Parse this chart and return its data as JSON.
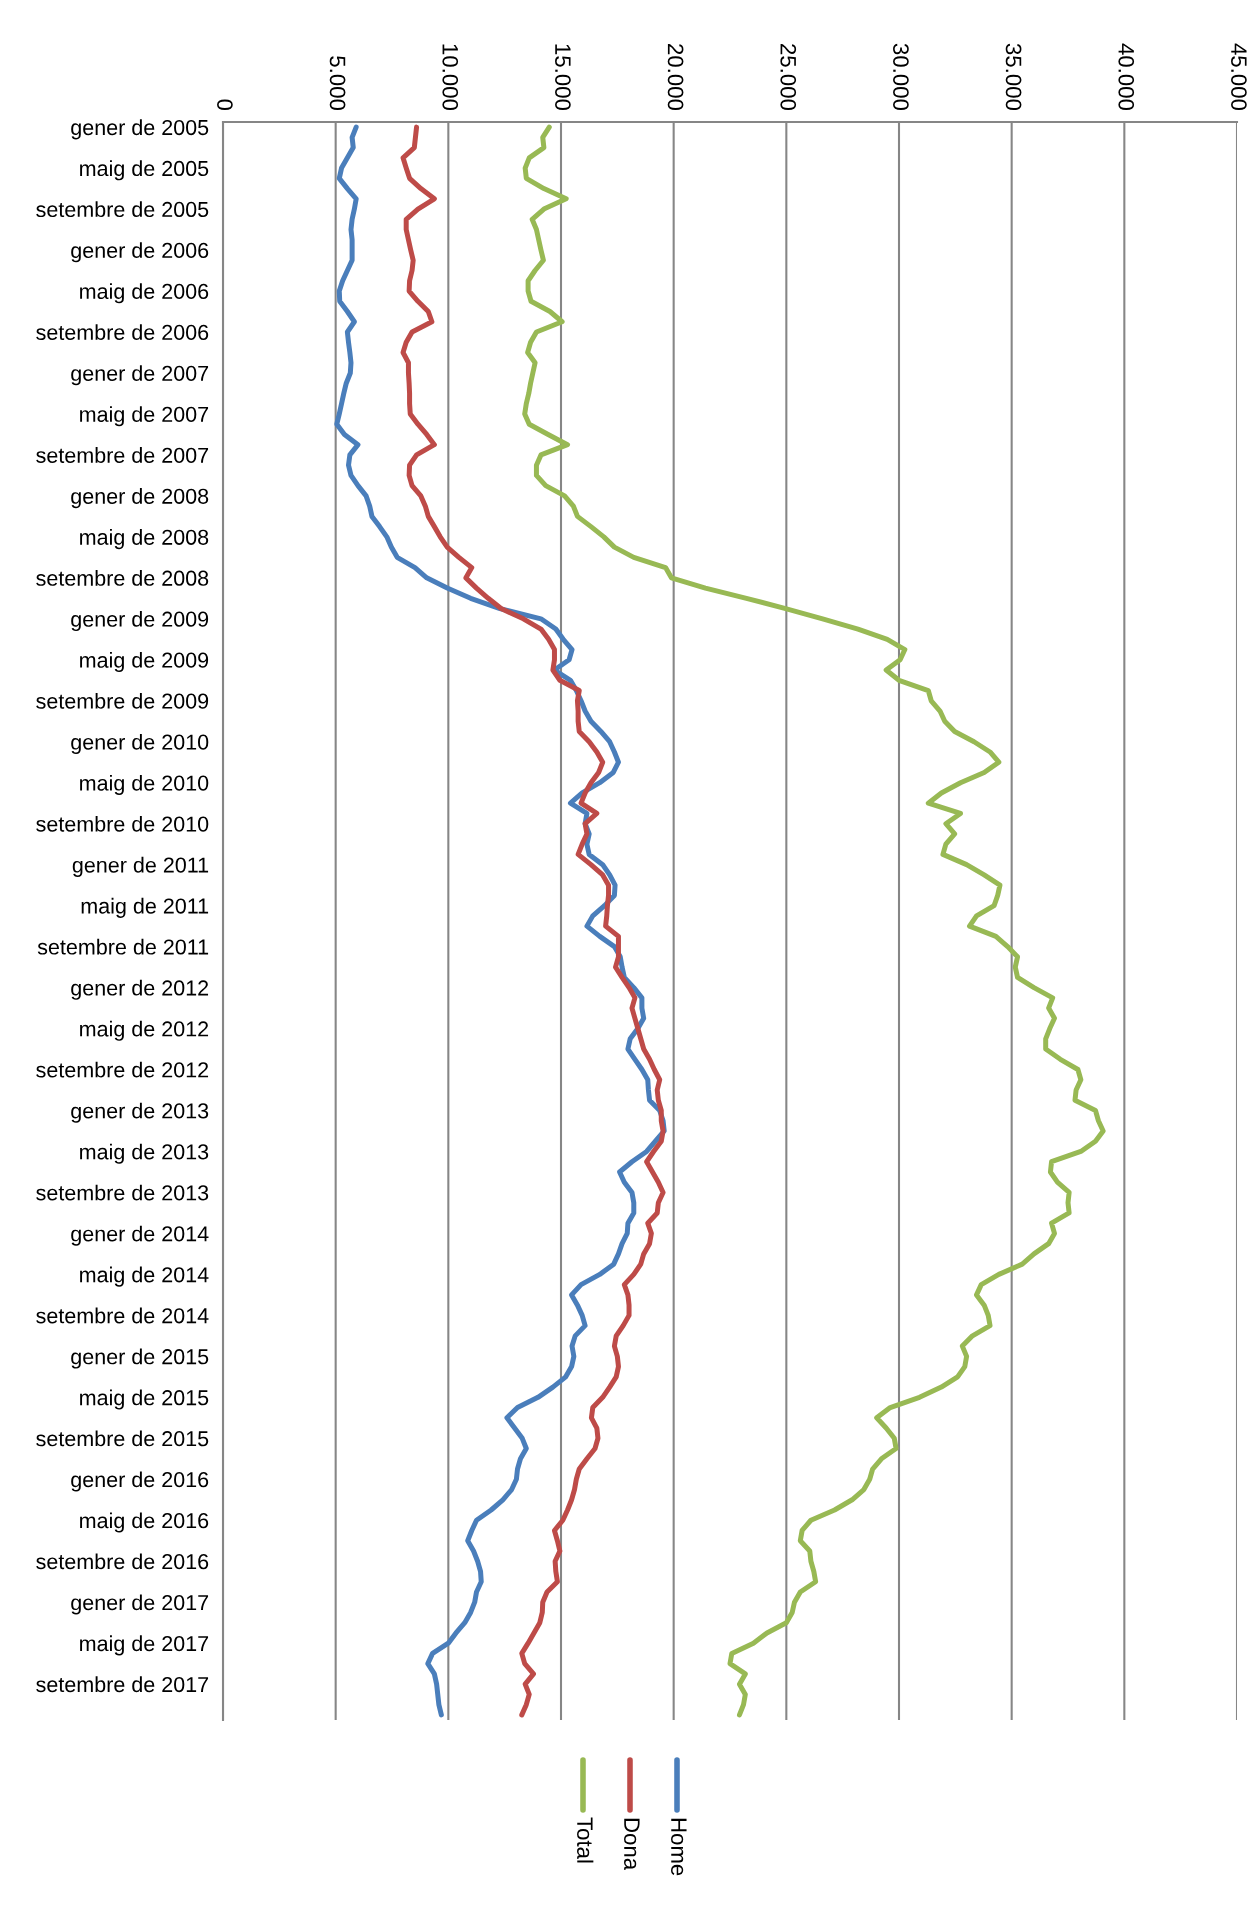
{
  "chart_data": {
    "type": "line",
    "orientation": "horizontal",
    "categories": [
      "gener de 2005",
      null,
      null,
      null,
      "maig de 2005",
      null,
      null,
      null,
      "setembre de 2005",
      null,
      null,
      null,
      "gener de 2006",
      null,
      null,
      null,
      "maig de 2006",
      null,
      null,
      null,
      "setembre de 2006",
      null,
      null,
      null,
      "gener de 2007",
      null,
      null,
      null,
      "maig de 2007",
      null,
      null,
      null,
      "setembre de 2007",
      null,
      null,
      null,
      "gener de 2008",
      null,
      null,
      null,
      "maig de 2008",
      null,
      null,
      null,
      "setembre de 2008",
      null,
      null,
      null,
      "gener de 2009",
      null,
      null,
      null,
      "maig de 2009",
      null,
      null,
      null,
      "setembre de 2009",
      null,
      null,
      null,
      "gener de 2010",
      null,
      null,
      null,
      "maig de 2010",
      null,
      null,
      null,
      "setembre de 2010",
      null,
      null,
      null,
      "gener de 2011",
      null,
      null,
      null,
      "maig de 2011",
      null,
      null,
      null,
      "setembre de 2011",
      null,
      null,
      null,
      "gener de 2012",
      null,
      null,
      null,
      "maig de 2012",
      null,
      null,
      null,
      "setembre de 2012",
      null,
      null,
      null,
      "gener de 2013",
      null,
      null,
      null,
      "maig de 2013",
      null,
      null,
      null,
      "setembre de 2013",
      null,
      null,
      null,
      "gener de 2014",
      null,
      null,
      null,
      "maig de 2014",
      null,
      null,
      null,
      "setembre de 2014",
      null,
      null,
      null,
      "gener de 2015",
      null,
      null,
      null,
      "maig de 2015",
      null,
      null,
      null,
      "setembre de 2015",
      null,
      null,
      null,
      "gener de 2016",
      null,
      null,
      null,
      "maig de 2016",
      null,
      null,
      null,
      "setembre de 2016",
      null,
      null,
      null,
      "gener de 2017",
      null,
      null,
      null,
      "maig de 2017",
      null,
      null,
      null,
      "setembre de 2017",
      null,
      null,
      null
    ],
    "series": [
      {
        "name": "Home",
        "color": "#4a7ebb",
        "values": [
          5910,
          5730,
          5780,
          5520,
          5260,
          5160,
          5520,
          5910,
          5830,
          5730,
          5680,
          5730,
          5730,
          5730,
          5520,
          5310,
          5160,
          5180,
          5520,
          5830,
          5520,
          5570,
          5630,
          5680,
          5650,
          5470,
          5360,
          5260,
          5160,
          5050,
          5390,
          5990,
          5630,
          5570,
          5680,
          5990,
          6350,
          6510,
          6610,
          6950,
          7270,
          7470,
          7730,
          8520,
          9040,
          9950,
          10990,
          12290,
          14110,
          14770,
          15100,
          15490,
          15360,
          14710,
          15420,
          15680,
          15890,
          16070,
          16330,
          16770,
          17160,
          17370,
          17550,
          17320,
          16720,
          15940,
          15420,
          16150,
          16070,
          16250,
          16150,
          16250,
          16850,
          17160,
          17400,
          17370,
          16930,
          16410,
          16150,
          16720,
          17370,
          17630,
          17710,
          17810,
          18230,
          18590,
          18590,
          18670,
          18410,
          18070,
          17970,
          18280,
          18590,
          18850,
          18880,
          18930,
          19380,
          19530,
          19580,
          19190,
          18800,
          18150,
          17600,
          17810,
          18150,
          18230,
          18230,
          17970,
          17940,
          17710,
          17550,
          17340,
          16720,
          15890,
          15470,
          15730,
          15940,
          16070,
          15630,
          15490,
          15570,
          15470,
          15210,
          14640,
          13980,
          13070,
          12600,
          12940,
          13280,
          13460,
          13200,
          13070,
          13020,
          12810,
          12420,
          11900,
          11250,
          11040,
          10860,
          11120,
          11300,
          11430,
          11460,
          11250,
          11170,
          10990,
          10730,
          10340,
          10000,
          9300,
          9090,
          9380,
          9480,
          9530,
          9580,
          9690
        ]
      },
      {
        "name": "Dona",
        "color": "#be4b48",
        "values": [
          8590,
          8540,
          8490,
          7990,
          8130,
          8280,
          8780,
          9380,
          8650,
          8130,
          8130,
          8230,
          8330,
          8440,
          8390,
          8280,
          8260,
          8650,
          9110,
          9270,
          8390,
          8130,
          7990,
          8230,
          8230,
          8260,
          8280,
          8280,
          8310,
          8650,
          9040,
          9380,
          8590,
          8280,
          8260,
          8390,
          8780,
          8980,
          9110,
          9380,
          9640,
          9950,
          10470,
          11040,
          10780,
          11250,
          11770,
          12340,
          13330,
          14110,
          14450,
          14710,
          14710,
          14640,
          14950,
          15810,
          15730,
          15760,
          15760,
          15810,
          16250,
          16590,
          16850,
          16670,
          16330,
          16070,
          15890,
          16590,
          16070,
          16150,
          15940,
          15760,
          16330,
          16850,
          17110,
          17110,
          17060,
          17030,
          16980,
          17550,
          17550,
          17550,
          17420,
          17710,
          18020,
          18280,
          18150,
          18280,
          18410,
          18540,
          18670,
          18930,
          19140,
          19380,
          19270,
          19320,
          19450,
          19450,
          19530,
          19450,
          19110,
          18800,
          19060,
          19320,
          19530,
          19320,
          19270,
          18850,
          19010,
          18930,
          18670,
          18540,
          18230,
          17810,
          17970,
          18020,
          18020,
          17760,
          17450,
          17370,
          17500,
          17550,
          17450,
          17160,
          16850,
          16410,
          16350,
          16590,
          16640,
          16510,
          16150,
          15810,
          15680,
          15600,
          15470,
          15290,
          15080,
          14710,
          14840,
          14950,
          14740,
          14770,
          14840,
          14380,
          14190,
          14170,
          14060,
          13800,
          13540,
          13260,
          13390,
          13780,
          13410,
          13590,
          13460,
          13260
        ]
      },
      {
        "name": "Total",
        "color": "#98b954",
        "values": [
          14480,
          14190,
          14240,
          13590,
          13410,
          13460,
          14240,
          15230,
          14240,
          13720,
          13910,
          14010,
          14110,
          14220,
          13850,
          13540,
          13540,
          13670,
          14510,
          15050,
          13910,
          13650,
          13520,
          13850,
          13750,
          13650,
          13570,
          13460,
          13390,
          13590,
          14430,
          15290,
          14110,
          13910,
          13910,
          14320,
          15160,
          15550,
          15730,
          16330,
          16900,
          17370,
          18230,
          19640,
          19900,
          21410,
          23230,
          24970,
          26610,
          28180,
          29480,
          30260,
          30050,
          29430,
          30000,
          31300,
          31430,
          31820,
          32030,
          32470,
          33330,
          34040,
          34430,
          33780,
          32730,
          31880,
          31300,
          32730,
          32080,
          32470,
          32080,
          31950,
          33000,
          33780,
          34480,
          34380,
          34220,
          33440,
          33130,
          34300,
          34820,
          35260,
          35160,
          35260,
          35990,
          36820,
          36640,
          36900,
          36690,
          36510,
          36510,
          37160,
          37940,
          38070,
          37860,
          37810,
          38720,
          38850,
          39060,
          38720,
          38070,
          36770,
          36720,
          37030,
          37550,
          37500,
          37550,
          36770,
          36900,
          36640,
          35990,
          35470,
          34430,
          33650,
          33440,
          33780,
          33960,
          34040,
          33260,
          32810,
          33000,
          32920,
          32600,
          31880,
          30910,
          29610,
          29010,
          29430,
          29790,
          29870,
          29220,
          28830,
          28700,
          28440,
          27920,
          27140,
          26090,
          25700,
          25620,
          26040,
          26090,
          26220,
          26300,
          25620,
          25360,
          25260,
          25000,
          24140,
          23540,
          22580,
          22500,
          23180,
          22920,
          23180,
          23100,
          22920
        ]
      }
    ],
    "xlim": [
      0,
      45000
    ],
    "xticks": [
      0,
      {
        "value": 5000,
        "label": "5.000"
      },
      {
        "value": 10000,
        "label": "10.000"
      },
      {
        "value": 15000,
        "label": "15.000"
      },
      {
        "value": 20000,
        "label": "20.000"
      },
      {
        "value": 25000,
        "label": "25.000"
      },
      {
        "value": 30000,
        "label": "30.000"
      },
      {
        "value": 35000,
        "label": "35.000"
      },
      {
        "value": 40000,
        "label": "40.000"
      },
      {
        "value": 45000,
        "label": "45.000"
      }
    ],
    "grid": "x",
    "legend": "bottom",
    "marker": "none",
    "line_style": "solid"
  }
}
